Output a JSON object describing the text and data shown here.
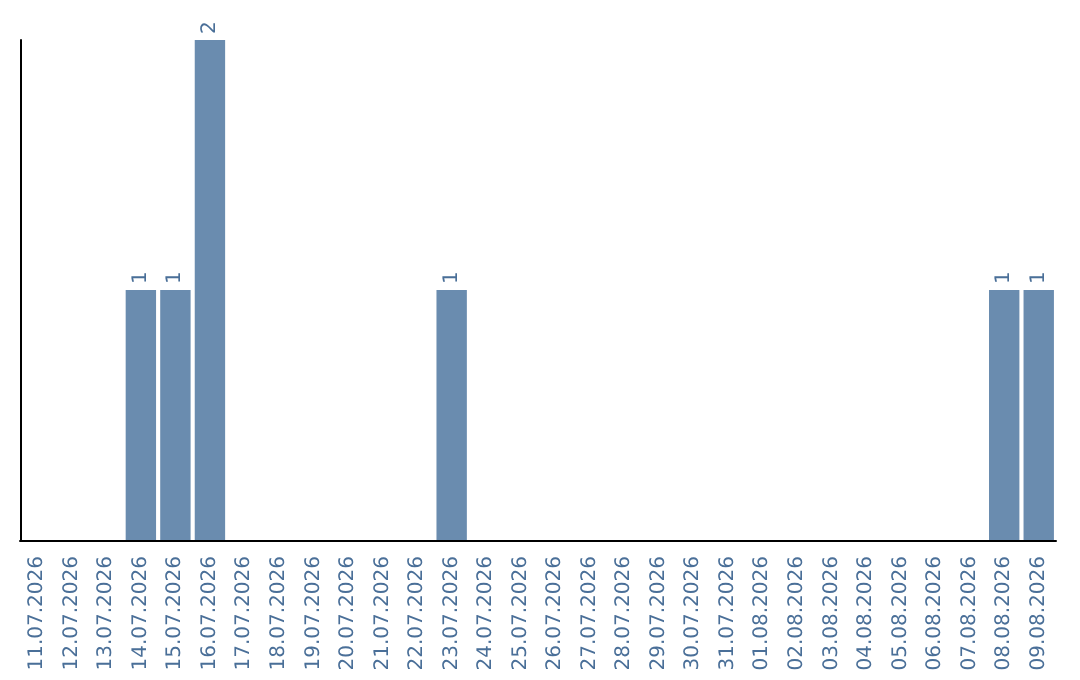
{
  "chart_data": {
    "type": "bar",
    "categories": [
      "11.07.2026",
      "12.07.2026",
      "13.07.2026",
      "14.07.2026",
      "15.07.2026",
      "16.07.2026",
      "17.07.2026",
      "18.07.2026",
      "19.07.2026",
      "20.07.2026",
      "21.07.2026",
      "22.07.2026",
      "23.07.2026",
      "24.07.2026",
      "25.07.2026",
      "26.07.2026",
      "27.07.2026",
      "28.07.2026",
      "29.07.2026",
      "30.07.2026",
      "31.07.2026",
      "01.08.2026",
      "02.08.2026",
      "03.08.2026",
      "04.08.2026",
      "05.08.2026",
      "06.08.2026",
      "07.08.2026",
      "08.08.2026",
      "09.08.2026"
    ],
    "values": [
      0,
      0,
      0,
      1,
      1,
      2,
      0,
      0,
      0,
      0,
      0,
      0,
      1,
      0,
      0,
      0,
      0,
      0,
      0,
      0,
      0,
      0,
      0,
      0,
      0,
      0,
      0,
      0,
      1,
      1
    ],
    "value_labels": [
      null,
      null,
      null,
      "1",
      "1",
      "2",
      null,
      null,
      null,
      null,
      null,
      null,
      "1",
      null,
      null,
      null,
      null,
      null,
      null,
      null,
      null,
      null,
      null,
      null,
      null,
      null,
      null,
      null,
      "1",
      "1"
    ],
    "color": "#6a8caf",
    "tick_labels": "x",
    "grid": false
  }
}
